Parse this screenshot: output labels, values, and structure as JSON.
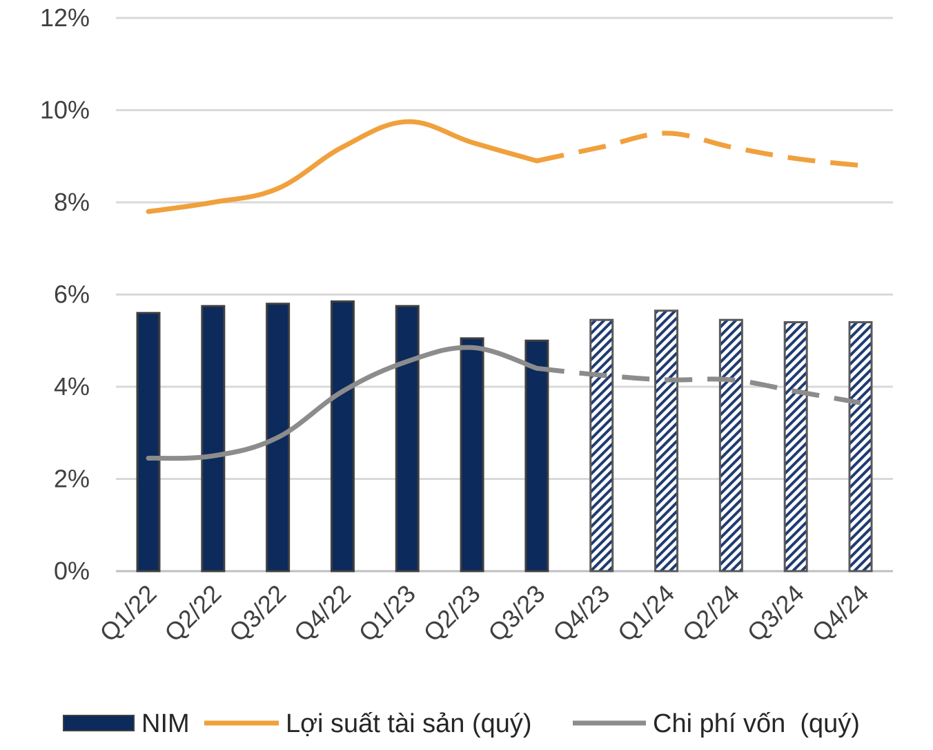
{
  "chart_data": {
    "type": "bar",
    "categories": [
      "Q1/22",
      "Q2/22",
      "Q3/22",
      "Q4/22",
      "Q1/23",
      "Q2/23",
      "Q3/23",
      "Q4/23",
      "Q1/24",
      "Q2/24",
      "Q3/24",
      "Q4/24"
    ],
    "y_ticks": [
      "0%",
      "2%",
      "4%",
      "6%",
      "8%",
      "10%",
      "12%"
    ],
    "ylim": [
      0,
      12
    ],
    "grid": true,
    "legend_position": "bottom",
    "forecast_start_index": 7,
    "series": [
      {
        "name": "NIM",
        "kind": "bar",
        "color": "#0c2a5b",
        "values": [
          5.6,
          5.75,
          5.8,
          5.85,
          5.75,
          5.05,
          5.0,
          5.45,
          5.65,
          5.45,
          5.4,
          5.4
        ]
      },
      {
        "name": "Lợi suất tài sản (quý)",
        "kind": "line",
        "color": "#f0a03c",
        "values": [
          7.8,
          8.0,
          8.3,
          9.2,
          9.75,
          9.3,
          8.9,
          9.2,
          9.5,
          9.2,
          8.95,
          8.8
        ]
      },
      {
        "name": "Chi phí vốn  (quý)",
        "kind": "line",
        "color": "#8c8c8c",
        "values": [
          2.45,
          2.5,
          2.9,
          3.9,
          4.55,
          4.85,
          4.4,
          4.25,
          4.15,
          4.15,
          3.9,
          3.65
        ]
      }
    ]
  }
}
